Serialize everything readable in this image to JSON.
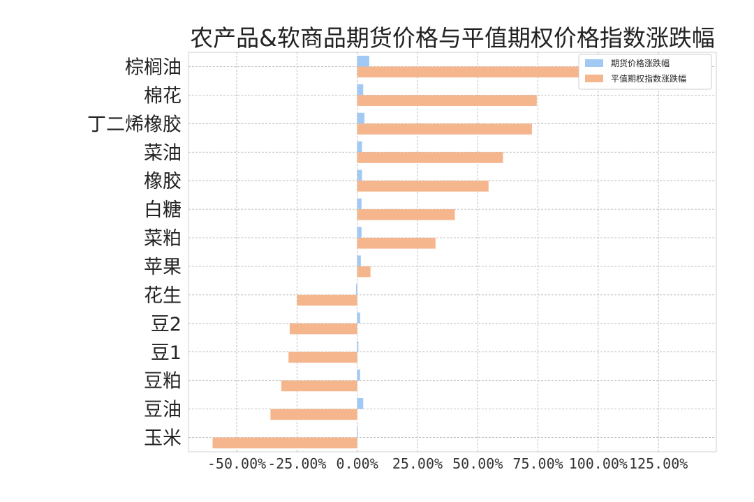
{
  "chart_data": {
    "type": "bar",
    "orientation": "horizontal",
    "title": "农产品&软商品期货价格与平值期权价格指数涨跌幅",
    "xlabel": "",
    "ylabel": "",
    "categories": [
      "棕榈油",
      "棉花",
      "丁二烯橡胶",
      "菜油",
      "橡胶",
      "白糖",
      "菜粕",
      "苹果",
      "花生",
      "豆2",
      "豆1",
      "豆粕",
      "豆油",
      "玉米"
    ],
    "series": [
      {
        "name": "期货价格涨跌幅",
        "color": "#a1c9f4",
        "values": [
          5.0,
          2.5,
          3.0,
          2.0,
          2.0,
          1.8,
          1.8,
          1.5,
          -0.5,
          1.2,
          0.5,
          1.2,
          2.5,
          0.3
        ]
      },
      {
        "name": "平值期权指数涨跌幅",
        "color": "#f5b68d",
        "values": [
          120.0,
          74.5,
          72.5,
          60.5,
          54.5,
          40.5,
          32.5,
          5.5,
          -25.0,
          -28.0,
          -28.5,
          -31.5,
          -36.0,
          -60.0
        ]
      }
    ],
    "xticks": [
      "-50.00%",
      "-25.00%",
      "0.00%",
      "25.00%",
      "50.00%",
      "75.00%",
      "100.00%",
      "125.00%"
    ],
    "xlim": [
      -70,
      149
    ],
    "grid": true,
    "legend_position": "top-right"
  }
}
